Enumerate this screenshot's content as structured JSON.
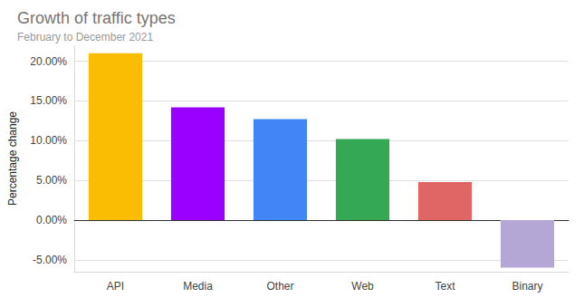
{
  "chart_data": {
    "type": "bar",
    "title": "Growth of traffic types",
    "subtitle": "February to December 2021",
    "y_label": "Percentage change",
    "categories": [
      "API",
      "Media",
      "Other",
      "Web",
      "Text",
      "Binary"
    ],
    "values": [
      21.0,
      14.2,
      12.7,
      10.2,
      4.8,
      -6.0
    ],
    "colors": [
      "#fbbc04",
      "#9900ff",
      "#4285f4",
      "#34a853",
      "#e06666",
      "#b4a7d6"
    ],
    "ylim": [
      -6.5,
      22
    ],
    "yticks": [
      {
        "value": -5,
        "label": "-5.00%"
      },
      {
        "value": 0,
        "label": "0.00%"
      },
      {
        "value": 5,
        "label": "5.00%"
      },
      {
        "value": 10,
        "label": "10.00%"
      },
      {
        "value": 15,
        "label": "15.00%"
      },
      {
        "value": 20,
        "label": "20.00%"
      }
    ],
    "grid": true
  }
}
